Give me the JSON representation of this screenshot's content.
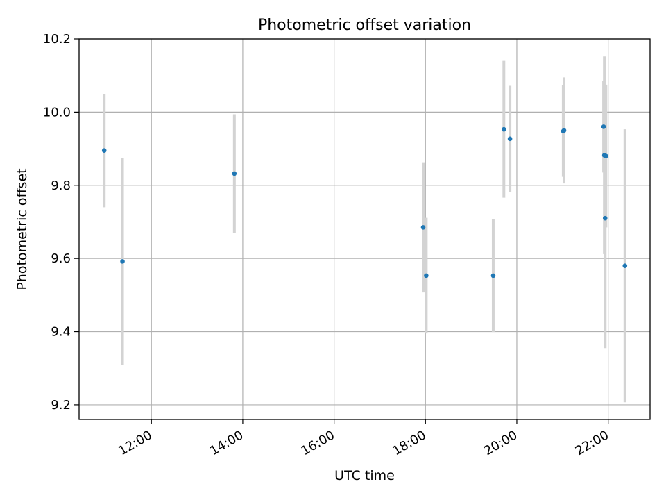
{
  "chart_data": {
    "type": "scatter",
    "title": "Photometric offset variation",
    "xlabel": "UTC time",
    "ylabel": "Photometric offset",
    "x_is_time": true,
    "xlim": [
      "10:25",
      "22:55"
    ],
    "ylim": [
      9.16,
      10.2
    ],
    "x_ticks": [
      "12:00",
      "14:00",
      "16:00",
      "18:00",
      "20:00",
      "22:00"
    ],
    "y_ticks": [
      9.2,
      9.4,
      9.6,
      9.8,
      10.0,
      10.2
    ],
    "y_tick_labels": [
      "9.2",
      "9.4",
      "9.6",
      "9.8",
      "10.0",
      "10.2"
    ],
    "grid": true,
    "marker_color": "#1f77b4",
    "errorbar_color": "#d3d3d3",
    "series": [
      {
        "points": [
          {
            "x": "10:58",
            "y": 9.895,
            "yerr": 0.155
          },
          {
            "x": "11:22",
            "y": 9.592,
            "yerr": 0.282
          },
          {
            "x": "13:49",
            "y": 9.832,
            "yerr": 0.162
          },
          {
            "x": "17:57",
            "y": 9.685,
            "yerr": 0.178
          },
          {
            "x": "18:01",
            "y": 9.553,
            "yerr": 0.158
          },
          {
            "x": "19:29",
            "y": 9.553,
            "yerr": 0.154
          },
          {
            "x": "19:43",
            "y": 9.953,
            "yerr": 0.187
          },
          {
            "x": "19:51",
            "y": 9.927,
            "yerr": 0.145
          },
          {
            "x": "21:01",
            "y": 9.948,
            "yerr": 0.125
          },
          {
            "x": "21:02",
            "y": 9.95,
            "yerr": 0.145
          },
          {
            "x": "21:54",
            "y": 9.96,
            "yerr": 0.125
          },
          {
            "x": "21:55",
            "y": 9.882,
            "yerr": 0.27
          },
          {
            "x": "21:56",
            "y": 9.71,
            "yerr": 0.355
          },
          {
            "x": "21:57",
            "y": 9.88,
            "yerr": 0.195
          },
          {
            "x": "22:22",
            "y": 9.58,
            "yerr": 0.373
          }
        ]
      }
    ]
  }
}
